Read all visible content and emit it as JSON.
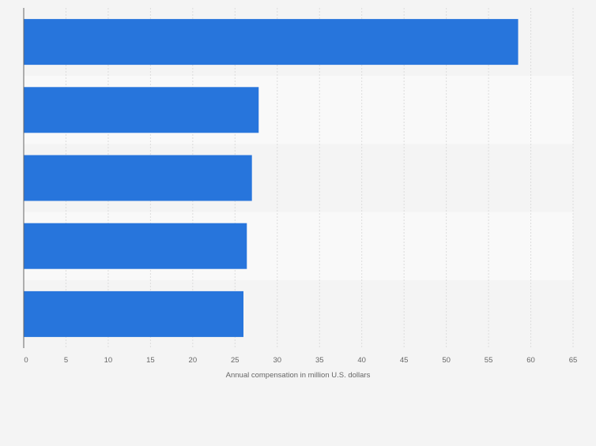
{
  "chart_data": {
    "type": "bar",
    "orientation": "horizontal",
    "categories": [
      "",
      "",
      "",
      "",
      ""
    ],
    "values": [
      58.5,
      27.8,
      27.0,
      26.4,
      26.0
    ],
    "title": "",
    "xlabel": "Annual compensation in million U.S. dollars",
    "ylabel": "",
    "xlim": [
      0,
      65
    ],
    "ticks": [
      0,
      5,
      10,
      15,
      20,
      25,
      30,
      35,
      40,
      45,
      50,
      55,
      60,
      65
    ],
    "tick_labels": [
      "0",
      "5",
      "10",
      "15",
      "20",
      "25",
      "30",
      "35",
      "40",
      "45",
      "50",
      "55",
      "60",
      "65"
    ],
    "grid": "vertical",
    "colors": {
      "bar": "#2775dc",
      "band_light": "#f9f9f9",
      "band_dark": "#f4f4f4",
      "gridline": "#dcdcdc",
      "axis": "#666666",
      "tick_text": "#666666"
    }
  }
}
